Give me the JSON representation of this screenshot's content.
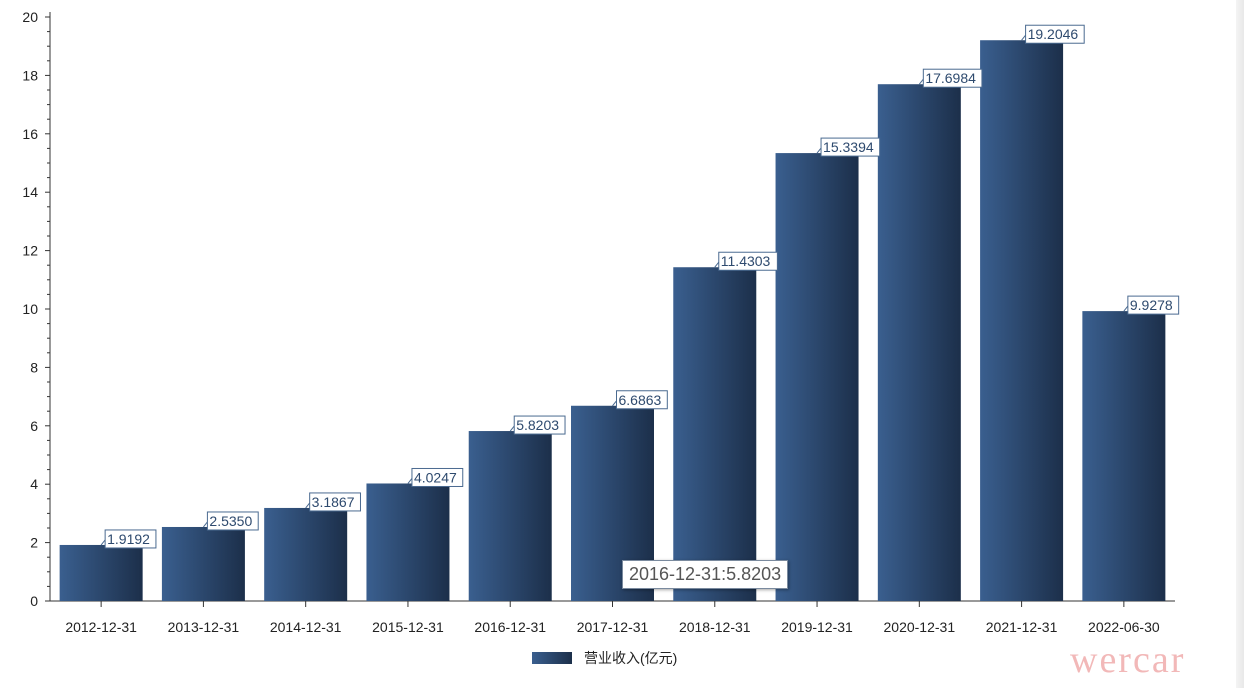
{
  "chart_data": {
    "type": "bar",
    "categories": [
      "2012-12-31",
      "2013-12-31",
      "2014-12-31",
      "2015-12-31",
      "2016-12-31",
      "2017-12-31",
      "2018-12-31",
      "2019-12-31",
      "2020-12-31",
      "2021-12-31",
      "2022-06-30"
    ],
    "series": [
      {
        "name": "营业收入(亿元)",
        "values": [
          1.9192,
          2.535,
          3.1867,
          4.0247,
          5.8203,
          6.6863,
          11.4303,
          15.3394,
          17.6984,
          19.2046,
          9.9278
        ],
        "labels": [
          "1.9192",
          "2.5350",
          "3.1867",
          "4.0247",
          "5.8203",
          "6.6863",
          "11.4303",
          "15.3394",
          "17.6984",
          "19.2046",
          "9.9278"
        ]
      }
    ],
    "ylim": [
      0,
      20
    ],
    "yticks": [
      "0",
      "2",
      "4",
      "6",
      "8",
      "10",
      "12",
      "14",
      "16",
      "18",
      "20"
    ],
    "legend": {
      "placement": "bottom-center"
    },
    "grid": false,
    "colors": {
      "bar_light": "#3a5f8f",
      "bar_dark": "#1c2f4a",
      "axis": "#333333",
      "label_border": "#4a6a90"
    }
  },
  "tooltip": {
    "text": "2016-12-31:5.8203"
  },
  "watermark": {
    "text": "wercar",
    "color": "#f2b8b8"
  }
}
